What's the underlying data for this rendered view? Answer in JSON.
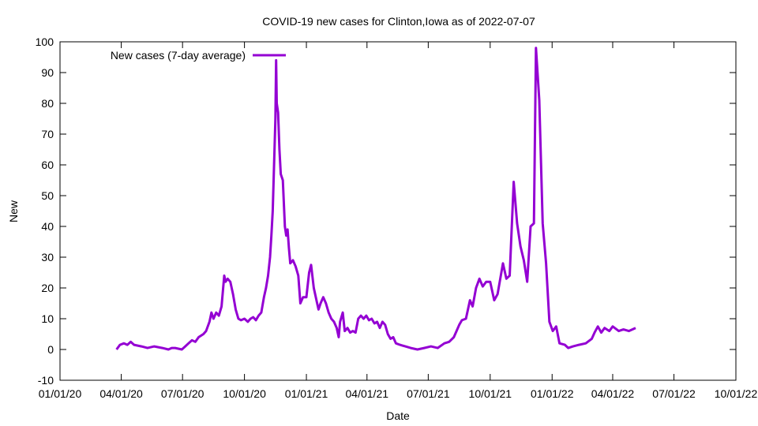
{
  "chart_data": {
    "type": "line",
    "title": "COVID-19 new cases for Clinton,Iowa as of 2022-07-07",
    "xlabel": "Date",
    "ylabel": "New",
    "xlim": [
      "2020-01-01",
      "2022-10-01"
    ],
    "ylim": [
      -10,
      100
    ],
    "x_ticks": [
      "01/01/20",
      "04/01/20",
      "07/01/20",
      "10/01/20",
      "01/01/21",
      "04/01/21",
      "07/01/21",
      "10/01/21",
      "01/01/22",
      "04/01/22",
      "07/01/22",
      "10/01/22"
    ],
    "y_ticks": [
      -10,
      0,
      10,
      20,
      30,
      40,
      50,
      60,
      70,
      80,
      90,
      100
    ],
    "grid": false,
    "legend": {
      "position": "top-left"
    },
    "colors": {
      "series": "#9400d3",
      "axes": "#000000"
    },
    "series": [
      {
        "name": "New cases (7-day average)",
        "points": [
          [
            "2020-03-25",
            0
          ],
          [
            "2020-03-30",
            1.5
          ],
          [
            "2020-04-05",
            2
          ],
          [
            "2020-04-10",
            1.5
          ],
          [
            "2020-04-15",
            2.5
          ],
          [
            "2020-04-20",
            1.5
          ],
          [
            "2020-05-01",
            1
          ],
          [
            "2020-05-10",
            0.5
          ],
          [
            "2020-05-20",
            1
          ],
          [
            "2020-06-01",
            0.5
          ],
          [
            "2020-06-10",
            0
          ],
          [
            "2020-06-15",
            0.5
          ],
          [
            "2020-06-20",
            0.5
          ],
          [
            "2020-06-30",
            0
          ],
          [
            "2020-07-05",
            1
          ],
          [
            "2020-07-10",
            2
          ],
          [
            "2020-07-15",
            3
          ],
          [
            "2020-07-20",
            2.5
          ],
          [
            "2020-07-25",
            4
          ],
          [
            "2020-08-01",
            5
          ],
          [
            "2020-08-05",
            6
          ],
          [
            "2020-08-10",
            9
          ],
          [
            "2020-08-13",
            12
          ],
          [
            "2020-08-16",
            10
          ],
          [
            "2020-08-20",
            12
          ],
          [
            "2020-08-24",
            11
          ],
          [
            "2020-08-28",
            14
          ],
          [
            "2020-09-01",
            24
          ],
          [
            "2020-09-03",
            22
          ],
          [
            "2020-09-06",
            23
          ],
          [
            "2020-09-10",
            22
          ],
          [
            "2020-09-14",
            18
          ],
          [
            "2020-09-18",
            13
          ],
          [
            "2020-09-22",
            10
          ],
          [
            "2020-09-26",
            9.5
          ],
          [
            "2020-10-01",
            10
          ],
          [
            "2020-10-06",
            9
          ],
          [
            "2020-10-10",
            10
          ],
          [
            "2020-10-14",
            10.5
          ],
          [
            "2020-10-18",
            9.5
          ],
          [
            "2020-10-22",
            11
          ],
          [
            "2020-10-26",
            12
          ],
          [
            "2020-10-30",
            17
          ],
          [
            "2020-11-02",
            20
          ],
          [
            "2020-11-05",
            24
          ],
          [
            "2020-11-08",
            30
          ],
          [
            "2020-11-10",
            37
          ],
          [
            "2020-11-12",
            45
          ],
          [
            "2020-11-14",
            60
          ],
          [
            "2020-11-16",
            75
          ],
          [
            "2020-11-17",
            94
          ],
          [
            "2020-11-18",
            80
          ],
          [
            "2020-11-20",
            77
          ],
          [
            "2020-11-22",
            65
          ],
          [
            "2020-11-24",
            57
          ],
          [
            "2020-11-27",
            55
          ],
          [
            "2020-11-30",
            40
          ],
          [
            "2020-12-02",
            37
          ],
          [
            "2020-12-04",
            39
          ],
          [
            "2020-12-06",
            33
          ],
          [
            "2020-12-08",
            28
          ],
          [
            "2020-12-12",
            29
          ],
          [
            "2020-12-16",
            27
          ],
          [
            "2020-12-20",
            24
          ],
          [
            "2020-12-23",
            15
          ],
          [
            "2020-12-27",
            17
          ],
          [
            "2021-01-01",
            17
          ],
          [
            "2021-01-05",
            25
          ],
          [
            "2021-01-08",
            27.5
          ],
          [
            "2021-01-12",
            20
          ],
          [
            "2021-01-16",
            16
          ],
          [
            "2021-01-19",
            13
          ],
          [
            "2021-01-22",
            15
          ],
          [
            "2021-01-26",
            17
          ],
          [
            "2021-01-30",
            15
          ],
          [
            "2021-02-03",
            12
          ],
          [
            "2021-02-07",
            10
          ],
          [
            "2021-02-11",
            9
          ],
          [
            "2021-02-15",
            7
          ],
          [
            "2021-02-18",
            4
          ],
          [
            "2021-02-20",
            9
          ],
          [
            "2021-02-24",
            12
          ],
          [
            "2021-02-27",
            6
          ],
          [
            "2021-03-03",
            7
          ],
          [
            "2021-03-07",
            5.5
          ],
          [
            "2021-03-11",
            6
          ],
          [
            "2021-03-15",
            5.5
          ],
          [
            "2021-03-19",
            10
          ],
          [
            "2021-03-23",
            11
          ],
          [
            "2021-03-27",
            10
          ],
          [
            "2021-03-31",
            11
          ],
          [
            "2021-04-04",
            9.5
          ],
          [
            "2021-04-08",
            10
          ],
          [
            "2021-04-12",
            8.5
          ],
          [
            "2021-04-16",
            9
          ],
          [
            "2021-04-20",
            7
          ],
          [
            "2021-04-24",
            9
          ],
          [
            "2021-04-28",
            8
          ],
          [
            "2021-05-02",
            5
          ],
          [
            "2021-05-06",
            3.5
          ],
          [
            "2021-05-10",
            4
          ],
          [
            "2021-05-14",
            2
          ],
          [
            "2021-05-20",
            1.5
          ],
          [
            "2021-05-28",
            1
          ],
          [
            "2021-06-05",
            0.5
          ],
          [
            "2021-06-15",
            0
          ],
          [
            "2021-06-25",
            0.5
          ],
          [
            "2021-07-05",
            1
          ],
          [
            "2021-07-15",
            0.5
          ],
          [
            "2021-07-25",
            2
          ],
          [
            "2021-08-01",
            2.5
          ],
          [
            "2021-08-08",
            4
          ],
          [
            "2021-08-12",
            6
          ],
          [
            "2021-08-16",
            8
          ],
          [
            "2021-08-20",
            9.5
          ],
          [
            "2021-08-26",
            10
          ],
          [
            "2021-09-01",
            16
          ],
          [
            "2021-09-05",
            14
          ],
          [
            "2021-09-10",
            20
          ],
          [
            "2021-09-15",
            23
          ],
          [
            "2021-09-20",
            20.5
          ],
          [
            "2021-09-25",
            22
          ],
          [
            "2021-10-01",
            22
          ],
          [
            "2021-10-07",
            16
          ],
          [
            "2021-10-12",
            18
          ],
          [
            "2021-10-16",
            23
          ],
          [
            "2021-10-20",
            28
          ],
          [
            "2021-10-25",
            23
          ],
          [
            "2021-10-30",
            24
          ],
          [
            "2021-11-05",
            54.5
          ],
          [
            "2021-11-10",
            41
          ],
          [
            "2021-11-15",
            33.5
          ],
          [
            "2021-11-20",
            29
          ],
          [
            "2021-11-25",
            22
          ],
          [
            "2021-11-30",
            40
          ],
          [
            "2021-12-05",
            41
          ],
          [
            "2021-12-08",
            98
          ],
          [
            "2021-12-13",
            81
          ],
          [
            "2021-12-18",
            41
          ],
          [
            "2021-12-23",
            28
          ],
          [
            "2021-12-28",
            9
          ],
          [
            "2022-01-02",
            6
          ],
          [
            "2022-01-07",
            7.5
          ],
          [
            "2022-01-12",
            2
          ],
          [
            "2022-01-20",
            1.5
          ],
          [
            "2022-01-25",
            0.5
          ],
          [
            "2022-02-01",
            1
          ],
          [
            "2022-02-10",
            1.5
          ],
          [
            "2022-02-20",
            2
          ],
          [
            "2022-03-01",
            3.5
          ],
          [
            "2022-03-05",
            5.5
          ],
          [
            "2022-03-10",
            7.5
          ],
          [
            "2022-03-15",
            5.5
          ],
          [
            "2022-03-20",
            7
          ],
          [
            "2022-03-27",
            6
          ],
          [
            "2022-04-01",
            7.5
          ],
          [
            "2022-04-10",
            6
          ],
          [
            "2022-04-17",
            6.5
          ],
          [
            "2022-04-25",
            6
          ],
          [
            "2022-05-05",
            7
          ]
        ]
      }
    ]
  }
}
